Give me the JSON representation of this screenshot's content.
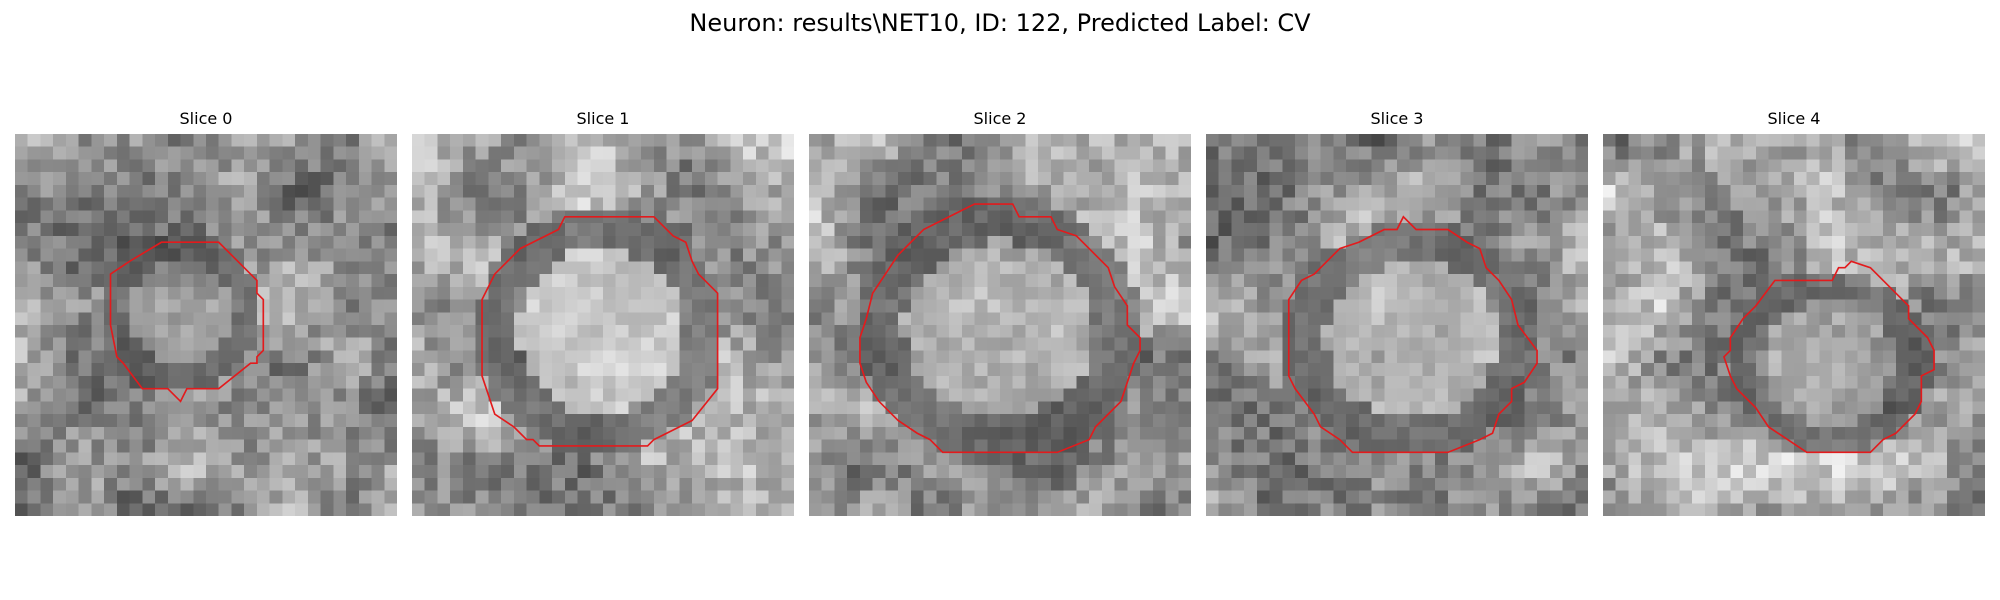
{
  "figure": {
    "title": "Neuron: results\\NET10, ID: 122, Predicted Label: CV",
    "contour_color": "#e31a1c"
  },
  "slices": [
    {
      "title": "Slice 0"
    },
    {
      "title": "Slice 1"
    },
    {
      "title": "Slice 2"
    },
    {
      "title": "Slice 3"
    },
    {
      "title": "Slice 4"
    }
  ]
}
